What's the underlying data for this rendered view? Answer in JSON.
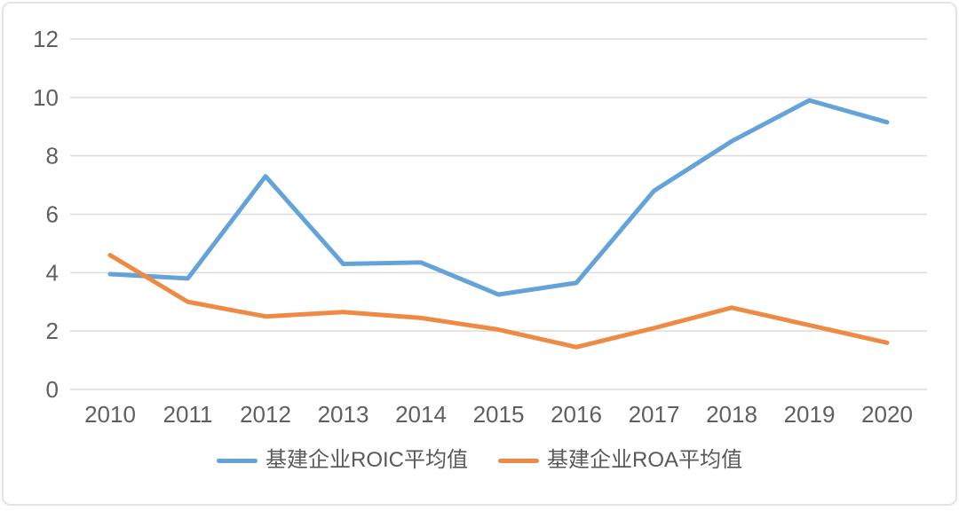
{
  "chart_data": {
    "type": "line",
    "categories": [
      "2010",
      "2011",
      "2012",
      "2013",
      "2014",
      "2015",
      "2016",
      "2017",
      "2018",
      "2019",
      "2020"
    ],
    "series": [
      {
        "name": "基建企业ROIC平均值",
        "color": "#63A3D9",
        "values": [
          3.95,
          3.8,
          7.3,
          4.3,
          4.35,
          3.25,
          3.65,
          6.8,
          8.5,
          9.9,
          9.15
        ]
      },
      {
        "name": "基建企业ROA平均值",
        "color": "#EE8A44",
        "values": [
          4.6,
          3.0,
          2.5,
          2.65,
          2.45,
          2.05,
          1.45,
          2.1,
          2.8,
          2.2,
          1.6
        ]
      }
    ],
    "title": "",
    "xlabel": "",
    "ylabel": "",
    "ylim": [
      0,
      12
    ],
    "yticks": [
      0,
      2,
      4,
      6,
      8,
      10,
      12
    ],
    "grid": true,
    "legend_position": "bottom"
  },
  "colors": {
    "grid": "#DCDCDC",
    "axis_text": "#5F5F5F",
    "card_border": "#E4E4E4",
    "background": "#FFFFFF"
  }
}
